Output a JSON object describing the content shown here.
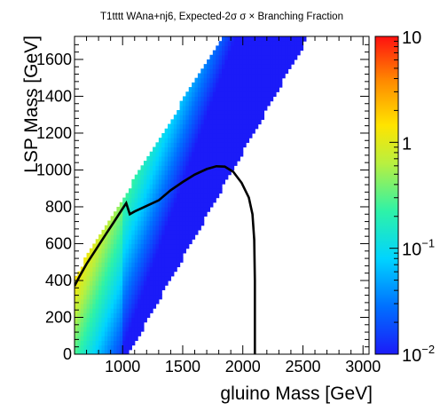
{
  "chart_data": {
    "type": "heatmap",
    "title": "T1tttt WAna+nj6, Expected-2σ σ × Branching Fraction",
    "xlabel": "gluino Mass [GeV]",
    "ylabel": "LSP Mass [GeV]",
    "xlim": [
      600,
      3050
    ],
    "ylim": [
      0,
      1725
    ],
    "x_ticks": [
      1000,
      1500,
      2000,
      2500,
      3000
    ],
    "x_tick_labels": [
      "1000",
      "1500",
      "2000",
      "2500",
      "3000"
    ],
    "y_ticks": [
      0,
      200,
      400,
      600,
      800,
      1000,
      1200,
      1400,
      1600
    ],
    "y_tick_labels": [
      "0",
      "200",
      "400",
      "600",
      "800",
      "1000",
      "1200",
      "1400",
      "1600"
    ],
    "z_scale": "log",
    "zlim": [
      0.01,
      10
    ],
    "z_ticks": [
      0.01,
      0.1,
      1,
      10
    ],
    "z_tick_labels": [
      {
        "base": "10",
        "exp": "−2"
      },
      {
        "base": "10",
        "exp": "−1"
      },
      {
        "base": "1",
        "exp": ""
      },
      {
        "base": "10",
        "exp": ""
      }
    ],
    "grid": false,
    "band": {
      "description_points_upper_edge": [
        [
          600,
          420
        ],
        [
          1000,
          850
        ],
        [
          1500,
          1420
        ],
        [
          1850,
          1725
        ]
      ],
      "lower_edge": [
        [
          1000,
          0
        ],
        [
          1000,
          100
        ],
        [
          1500,
          650
        ],
        [
          2000,
          1180
        ],
        [
          2500,
          1725
        ]
      ],
      "bin_size_x": 25,
      "bin_size_y": 25
    },
    "contour_expected_minus_2sigma": [
      [
        600,
        370
      ],
      [
        640,
        420
      ],
      [
        700,
        490
      ],
      [
        780,
        570
      ],
      [
        860,
        650
      ],
      [
        940,
        730
      ],
      [
        1000,
        790
      ],
      [
        1030,
        820
      ],
      [
        1060,
        760
      ],
      [
        1100,
        775
      ],
      [
        1200,
        805
      ],
      [
        1300,
        835
      ],
      [
        1400,
        890
      ],
      [
        1500,
        935
      ],
      [
        1600,
        975
      ],
      [
        1700,
        1005
      ],
      [
        1780,
        1020
      ],
      [
        1850,
        1018
      ],
      [
        1920,
        990
      ],
      [
        1990,
        930
      ],
      [
        2050,
        850
      ],
      [
        2080,
        760
      ],
      [
        2095,
        620
      ],
      [
        2100,
        400
      ],
      [
        2100,
        0
      ]
    ]
  }
}
